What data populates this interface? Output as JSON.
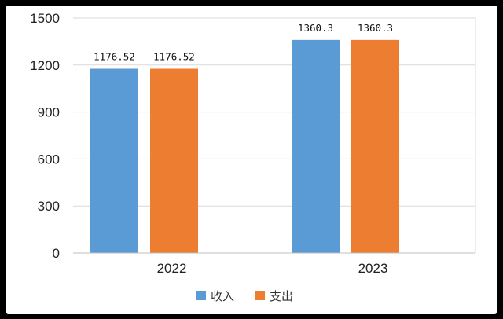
{
  "chart_data": {
    "type": "bar",
    "categories": [
      "2022",
      "2023"
    ],
    "series": [
      {
        "name": "收入",
        "values": [
          1176.52,
          1360.3
        ],
        "labels": [
          "1176.52",
          "1360.3"
        ],
        "color": "#5b9bd5"
      },
      {
        "name": "支出",
        "values": [
          1176.52,
          1360.3
        ],
        "labels": [
          "1176.52",
          "1360.3"
        ],
        "color": "#ed7d31"
      }
    ],
    "y_ticks": [
      "0",
      "300",
      "600",
      "900",
      "1200",
      "1500"
    ],
    "ylim": [
      0,
      1500
    ],
    "grid": true,
    "legend_position": "bottom"
  }
}
